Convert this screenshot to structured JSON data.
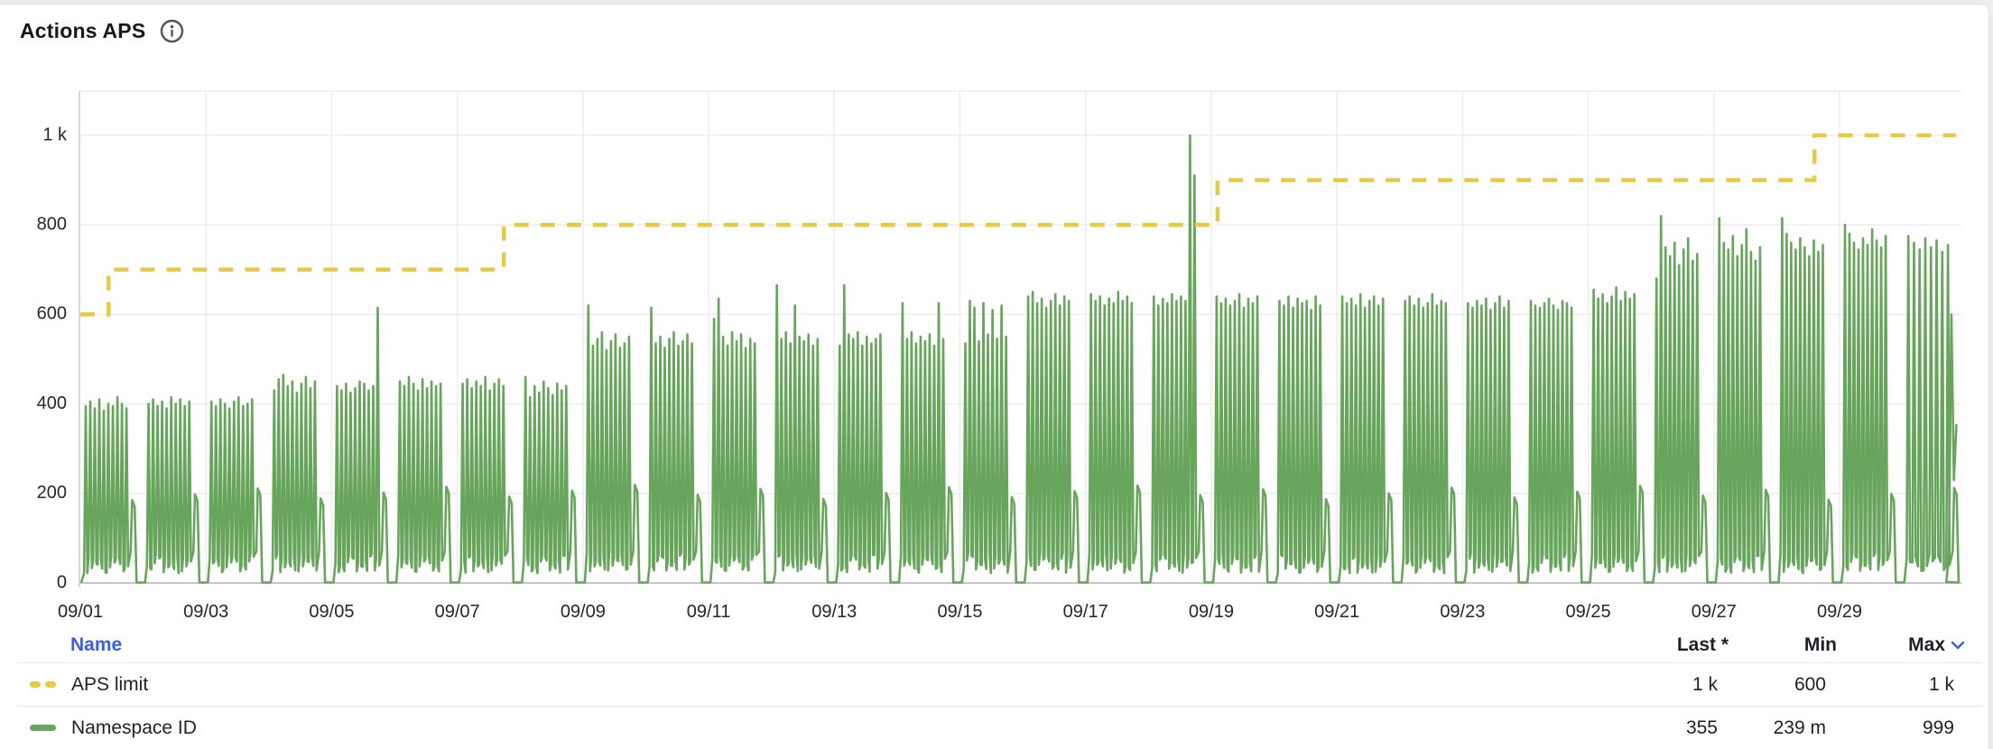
{
  "panel": {
    "title": "Actions APS",
    "info_icon": "info-circle"
  },
  "chart_data": {
    "type": "line",
    "title": "Actions APS",
    "x_axis": {
      "tick_labels": [
        "09/01",
        "09/03",
        "09/05",
        "09/07",
        "09/09",
        "09/11",
        "09/13",
        "09/15",
        "09/17",
        "09/19",
        "09/21",
        "09/23",
        "09/25",
        "09/27",
        "09/29"
      ],
      "tick_every_days": 2,
      "days_shown": 30,
      "grid": true
    },
    "y_axis": {
      "ticks": [
        0,
        200,
        400,
        600,
        800,
        1000
      ],
      "tick_labels": [
        "0",
        "200",
        "400",
        "600",
        "800",
        "1 k"
      ],
      "range": [
        0,
        1000
      ],
      "grid": true
    },
    "series": [
      {
        "name": "APS limit",
        "color": "#e8c847",
        "line_style": "dashed",
        "render": "step",
        "steps": [
          {
            "until_day": 0.45,
            "value": 600
          },
          {
            "until_day": 6.74,
            "value": 700
          },
          {
            "until_day": 18.1,
            "value": 800
          },
          {
            "until_day": 27.6,
            "value": 900
          },
          {
            "until_day": 29.85,
            "value": 1000
          }
        ],
        "stats": {
          "last": "1 k",
          "min": "600",
          "max": "1 k"
        }
      },
      {
        "name": "Namespace ID",
        "color": "#68a55c",
        "line_style": "solid",
        "render": "daily-burst",
        "daily_spike_peaks": [
          [
            395,
            405,
            390,
            410,
            385,
            400,
            395,
            415,
            400,
            390
          ],
          [
            400,
            410,
            395,
            405,
            390,
            415,
            400,
            410,
            395,
            405
          ],
          [
            405,
            395,
            410,
            400,
            390,
            405,
            415,
            395,
            400,
            410
          ],
          [
            430,
            455,
            465,
            440,
            450,
            425,
            445,
            460,
            435,
            450
          ],
          [
            440,
            430,
            445,
            425,
            435,
            450,
            445,
            430,
            440,
            615
          ],
          [
            450,
            440,
            460,
            445,
            430,
            455,
            435,
            450,
            440,
            445
          ],
          [
            445,
            455,
            435,
            450,
            440,
            460,
            430,
            445,
            455,
            440
          ],
          [
            460,
            415,
            440,
            425,
            450,
            435,
            420,
            445,
            430,
            440
          ],
          [
            620,
            530,
            545,
            560,
            520,
            540,
            555,
            525,
            535,
            550
          ],
          [
            615,
            535,
            550,
            525,
            545,
            560,
            530,
            540,
            555,
            535
          ],
          [
            590,
            635,
            550,
            530,
            560,
            540,
            555,
            525,
            545,
            535
          ],
          [
            665,
            545,
            560,
            535,
            620,
            550,
            540,
            555,
            530,
            545
          ],
          [
            530,
            665,
            555,
            545,
            560,
            530,
            550,
            535,
            545,
            555
          ],
          [
            625,
            545,
            560,
            535,
            550,
            540,
            555,
            530,
            625,
            545
          ],
          [
            535,
            630,
            615,
            540,
            625,
            555,
            610,
            545,
            620,
            550
          ],
          [
            640,
            650,
            625,
            635,
            615,
            630,
            645,
            620,
            640,
            630
          ],
          [
            645,
            630,
            640,
            620,
            635,
            625,
            650,
            630,
            640,
            625
          ],
          [
            640,
            620,
            635,
            625,
            645,
            630,
            640,
            630,
            1000,
            910
          ],
          [
            640,
            625,
            635,
            620,
            630,
            645,
            615,
            635,
            625,
            640
          ],
          [
            630,
            620,
            640,
            615,
            635,
            625,
            630,
            610,
            640,
            620
          ],
          [
            640,
            625,
            635,
            620,
            645,
            615,
            630,
            640,
            620,
            635
          ],
          [
            630,
            640,
            620,
            635,
            615,
            625,
            645,
            620,
            630,
            625
          ],
          [
            625,
            615,
            630,
            620,
            635,
            610,
            625,
            640,
            615,
            630
          ],
          [
            630,
            620,
            615,
            625,
            635,
            620,
            610,
            630,
            625,
            615
          ],
          [
            655,
            635,
            645,
            625,
            640,
            660,
            630,
            650,
            635,
            645
          ],
          [
            680,
            820,
            750,
            730,
            760,
            710,
            745,
            770,
            720,
            735
          ],
          [
            815,
            760,
            745,
            775,
            730,
            755,
            790,
            740,
            720,
            750
          ],
          [
            815,
            780,
            760,
            745,
            770,
            750,
            730,
            765,
            740,
            755
          ],
          [
            800,
            780,
            760,
            745,
            770,
            755,
            790,
            765,
            750,
            775
          ],
          [
            775,
            760,
            745,
            770,
            750,
            765,
            740,
            755
          ]
        ],
        "tail_points_day_value": [
          [
            29.7,
            2
          ],
          [
            29.74,
            60
          ],
          [
            29.78,
            600
          ],
          [
            29.82,
            230
          ],
          [
            29.86,
            355
          ]
        ],
        "stats": {
          "last": "355",
          "min": "239 m",
          "max": "999"
        }
      }
    ],
    "legend": {
      "header": {
        "name": "Name",
        "last": "Last *",
        "min": "Min",
        "max": "Max"
      },
      "max_sorted": true
    }
  }
}
